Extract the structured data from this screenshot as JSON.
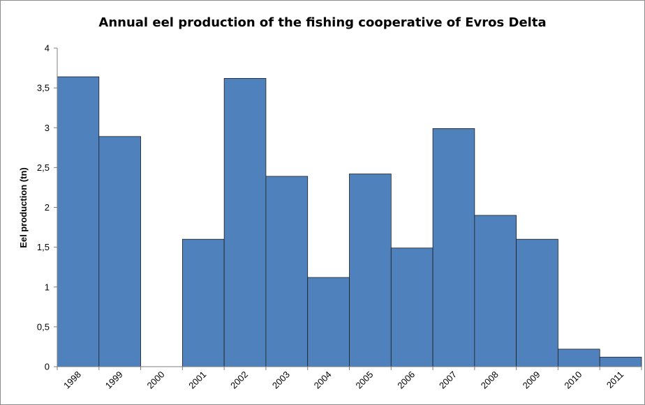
{
  "chart_data": {
    "type": "bar",
    "title": "Annual eel production of the fishing cooperative of Evros Delta",
    "xlabel": "",
    "ylabel": "Eel production (tn)",
    "ylim": [
      0,
      4
    ],
    "yticks": [
      "0",
      "0,5",
      "1",
      "1,5",
      "2",
      "2,5",
      "3",
      "3,5",
      "4"
    ],
    "categories": [
      "1998",
      "1999",
      "2000",
      "2001",
      "2002",
      "2003",
      "2004",
      "2005",
      "2006",
      "2007",
      "2008",
      "2009",
      "2010",
      "2011"
    ],
    "values": [
      3.64,
      2.89,
      0,
      1.6,
      3.62,
      2.39,
      1.12,
      2.42,
      1.49,
      2.99,
      1.9,
      1.6,
      0.22,
      0.12
    ],
    "bar_color": "#4f81bd",
    "bar_edge_color": "#1f1f1f",
    "grid": false,
    "legend": "none"
  }
}
